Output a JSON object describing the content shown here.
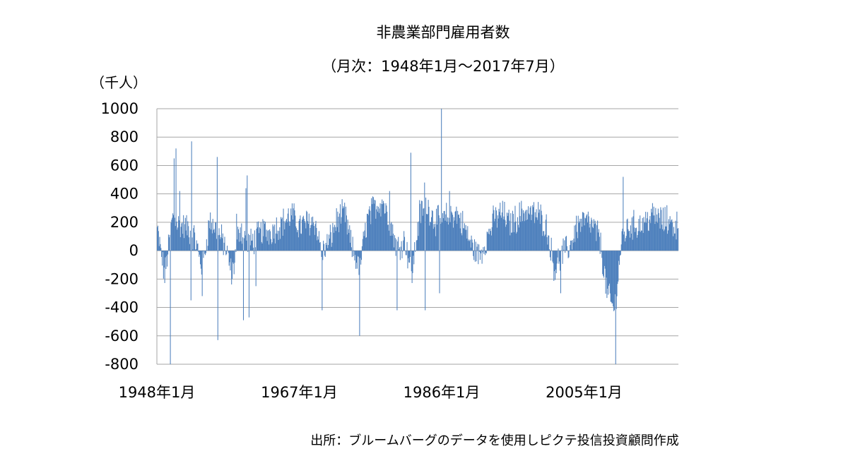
{
  "chart_data": {
    "type": "bar",
    "title": "非農業部門雇用者数",
    "subtitle": "（月次：1948年1月～2017年7月）",
    "ylabel": "（千人）",
    "xlabel": "",
    "ylim": [
      -800,
      1000
    ],
    "yticks": [
      1000,
      800,
      600,
      400,
      200,
      0,
      -200,
      -400,
      -600,
      -800
    ],
    "ytick_labels": [
      "1000",
      "800",
      "600",
      "400",
      "200",
      "0",
      "-200",
      "-400",
      "-600",
      "-800"
    ],
    "xticks": [
      "1948年1月",
      "1967年1月",
      "1986年1月",
      "2005年1月"
    ],
    "xtick_years": [
      1948,
      1967,
      1986,
      2005
    ],
    "grid": true,
    "legend": "none",
    "bar_color": "#4f81bd",
    "start": "1948年1月",
    "end": "2017年7月",
    "yearly_levels": [
      [
        1948,
        150
      ],
      [
        1949,
        -180
      ],
      [
        1950,
        240
      ],
      [
        1951,
        180
      ],
      [
        1952,
        160
      ],
      [
        1953,
        90
      ],
      [
        1954,
        -130
      ],
      [
        1955,
        210
      ],
      [
        1956,
        140
      ],
      [
        1957,
        40
      ],
      [
        1958,
        -180
      ],
      [
        1959,
        180
      ],
      [
        1960,
        40
      ],
      [
        1961,
        80
      ],
      [
        1962,
        140
      ],
      [
        1963,
        130
      ],
      [
        1964,
        170
      ],
      [
        1965,
        210
      ],
      [
        1966,
        250
      ],
      [
        1967,
        170
      ],
      [
        1968,
        200
      ],
      [
        1969,
        210
      ],
      [
        1970,
        -20
      ],
      [
        1971,
        70
      ],
      [
        1972,
        220
      ],
      [
        1973,
        260
      ],
      [
        1974,
        10
      ],
      [
        1975,
        -120
      ],
      [
        1976,
        220
      ],
      [
        1977,
        310
      ],
      [
        1978,
        350
      ],
      [
        1979,
        220
      ],
      [
        1980,
        20
      ],
      [
        1981,
        80
      ],
      [
        1982,
        -160
      ],
      [
        1983,
        260
      ],
      [
        1984,
        320
      ],
      [
        1985,
        220
      ],
      [
        1986,
        200
      ],
      [
        1987,
        260
      ],
      [
        1988,
        260
      ],
      [
        1989,
        160
      ],
      [
        1990,
        30
      ],
      [
        1991,
        -40
      ],
      [
        1992,
        90
      ],
      [
        1993,
        230
      ],
      [
        1994,
        270
      ],
      [
        1995,
        190
      ],
      [
        1996,
        230
      ],
      [
        1997,
        280
      ],
      [
        1998,
        260
      ],
      [
        1999,
        250
      ],
      [
        2000,
        160
      ],
      [
        2001,
        -130
      ],
      [
        2002,
        -20
      ],
      [
        2003,
        20
      ],
      [
        2004,
        180
      ],
      [
        2005,
        210
      ],
      [
        2006,
        175
      ],
      [
        2007,
        100
      ],
      [
        2008,
        -300
      ],
      [
        2009,
        -420
      ],
      [
        2010,
        90
      ],
      [
        2011,
        175
      ],
      [
        2012,
        180
      ],
      [
        2013,
        195
      ],
      [
        2014,
        250
      ],
      [
        2015,
        225
      ],
      [
        2016,
        190
      ],
      [
        2017,
        180
      ]
    ],
    "notable_months": [
      [
        "1949年10月",
        -800
      ],
      [
        "1950年4月",
        650
      ],
      [
        "1950年7月",
        720
      ],
      [
        "1951年1月",
        420
      ],
      [
        "1952年7月",
        -350
      ],
      [
        "1952年8月",
        770
      ],
      [
        "1954年1月",
        -320
      ],
      [
        "1956年1月",
        660
      ],
      [
        "1956年2月",
        -630
      ],
      [
        "1958年8月",
        260
      ],
      [
        "1959年7月",
        -490
      ],
      [
        "1959年11月",
        440
      ],
      [
        "1960年4月",
        -470
      ],
      [
        "1960年1月",
        530
      ],
      [
        "1961年3月",
        -250
      ],
      [
        "1970年1月",
        -420
      ],
      [
        "1975年1月",
        -600
      ],
      [
        "1978年3月",
        350
      ],
      [
        "1979年1月",
        420
      ],
      [
        "1980年1月",
        -420
      ],
      [
        "1981年11月",
        690
      ],
      [
        "1983年9月",
        480
      ],
      [
        "1983年10月",
        -420
      ],
      [
        "1985年9月",
        -300
      ],
      [
        "1985年12月",
        1000
      ],
      [
        "1987年1月",
        420
      ],
      [
        "2001年11月",
        -300
      ],
      [
        "2009年3月",
        -800
      ],
      [
        "2010年3月",
        520
      ],
      [
        "2016年1月",
        320
      ]
    ]
  },
  "source": {
    "text": "出所：ブルームバーグのデータを使用しピクテ投信投資顧問作成"
  }
}
